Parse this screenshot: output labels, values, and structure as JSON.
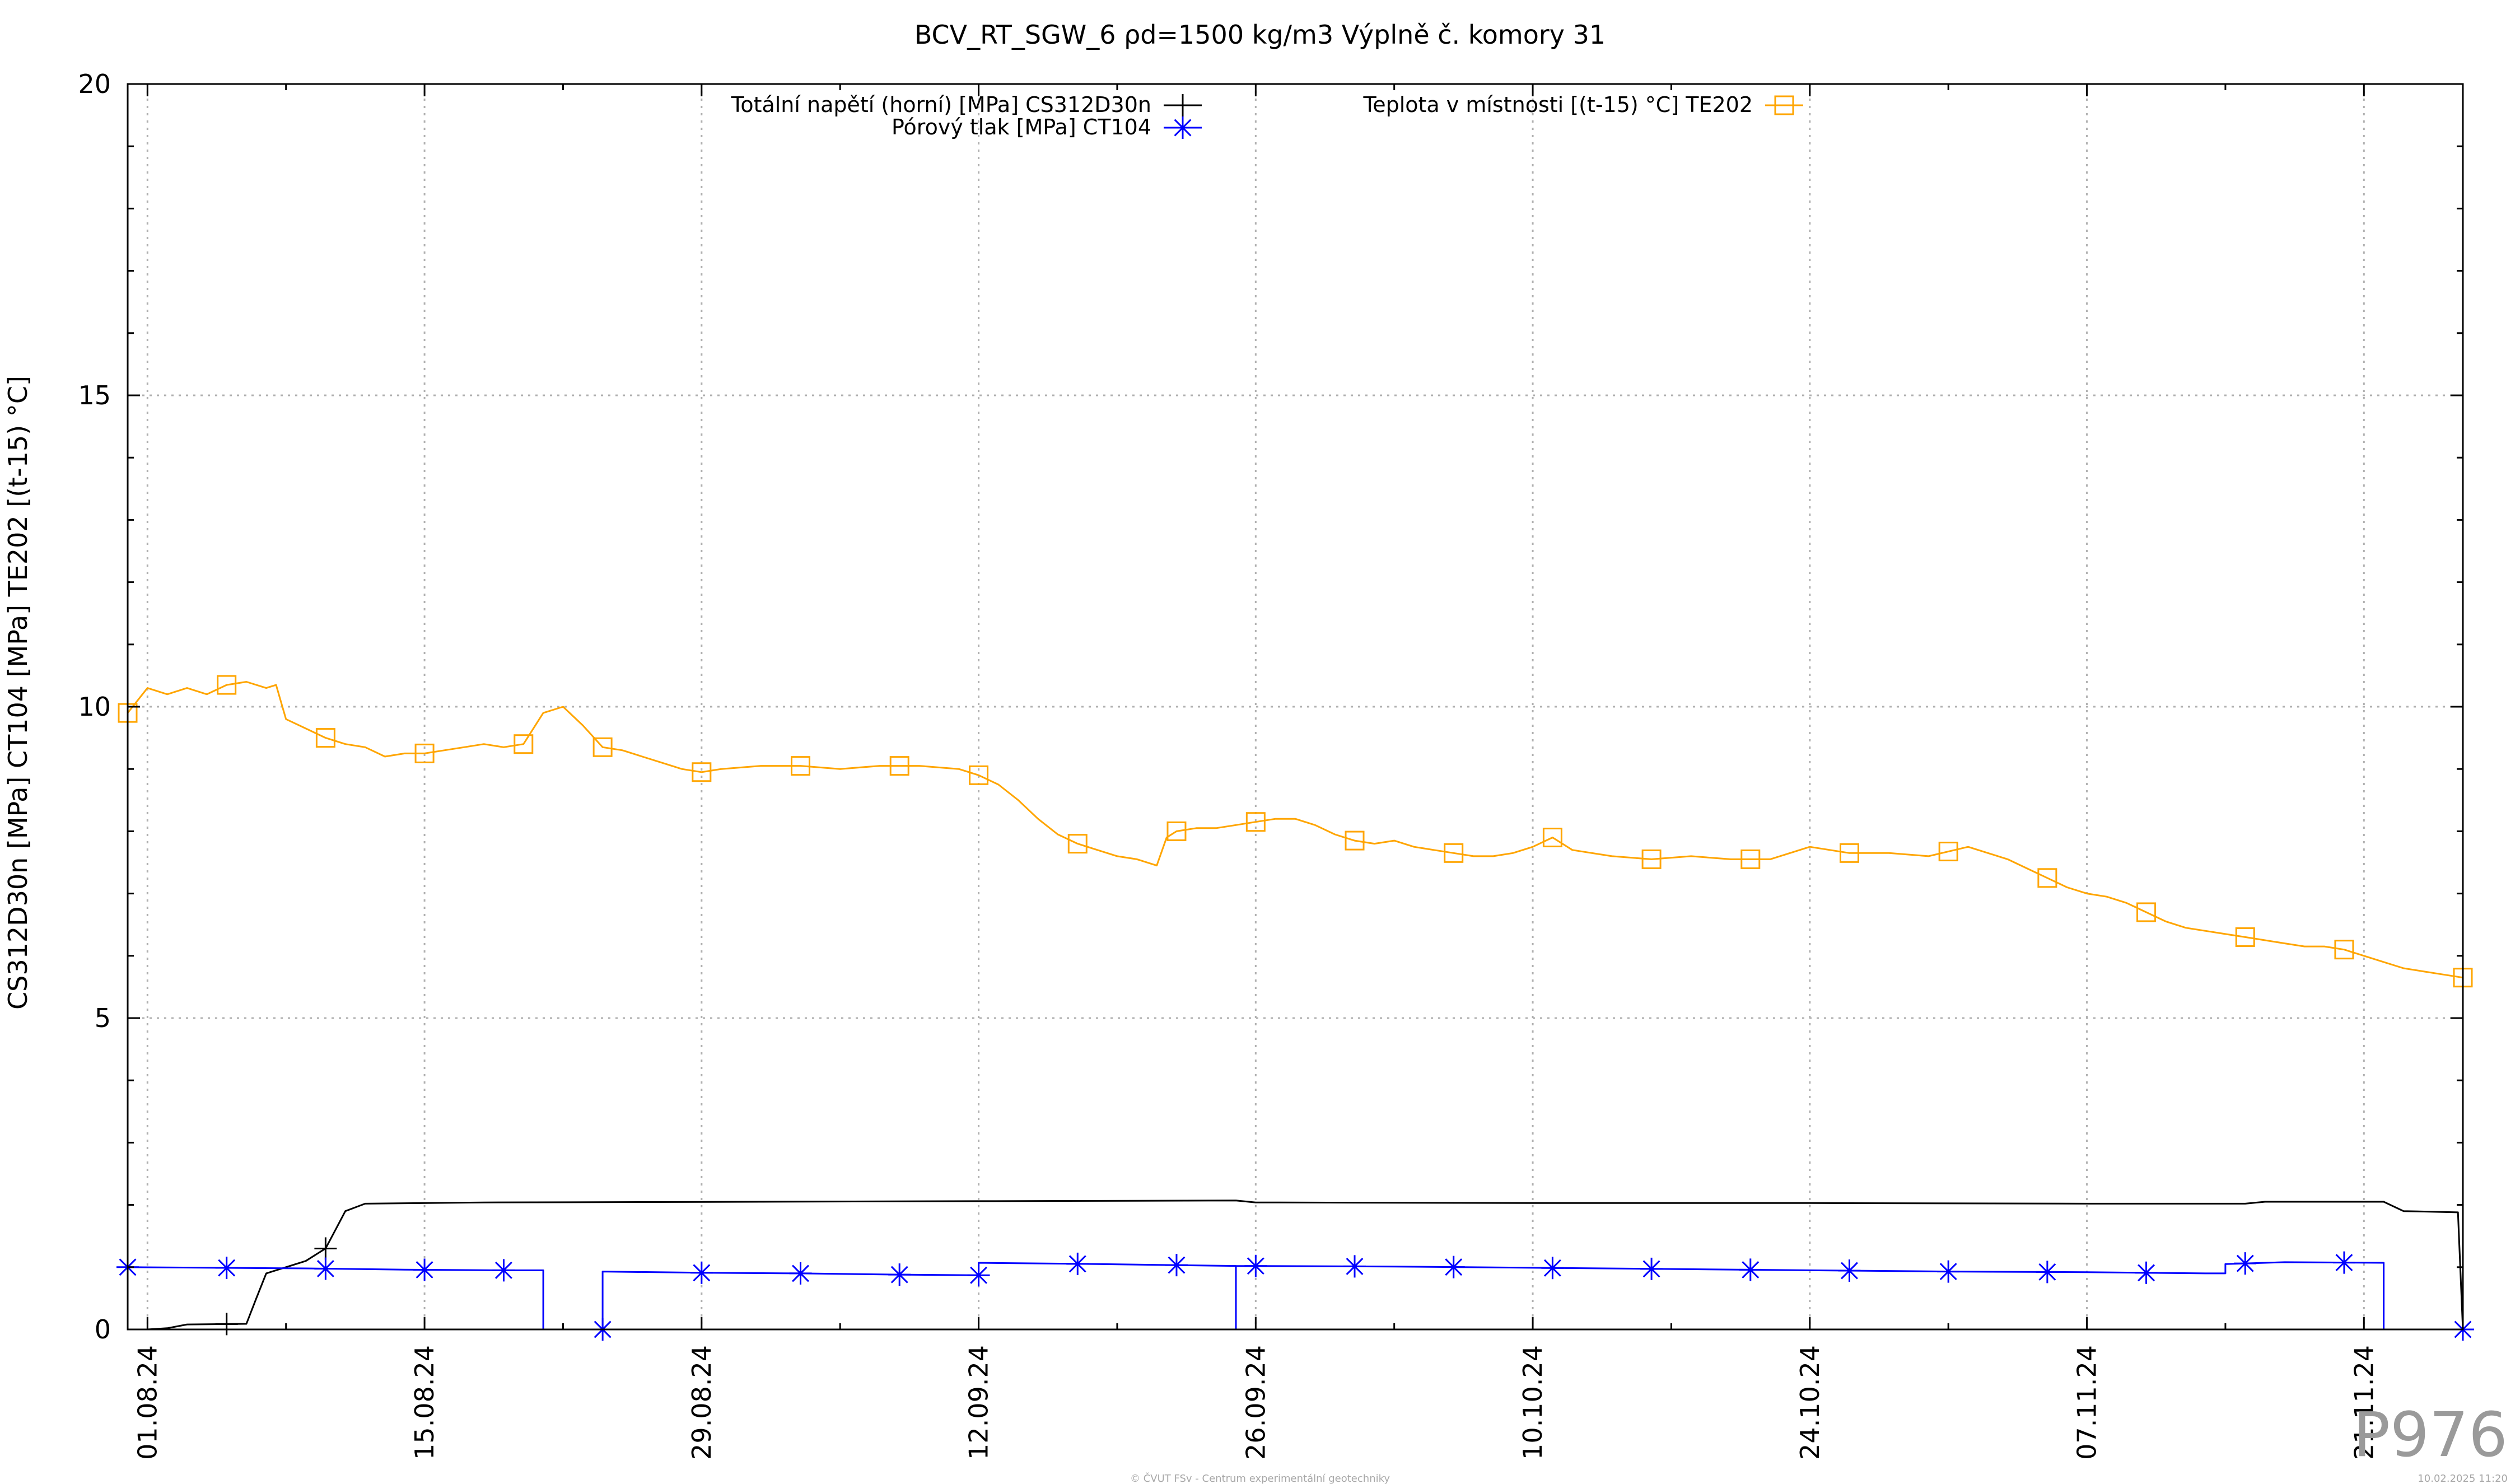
{
  "chart_data": {
    "type": "line",
    "title": "BCV_RT_SGW_6 ρd=1500 kg/m3 Výplně č. komory 31",
    "xlabel": "",
    "ylabel": "CS312D30n [MPa] CT104 [MPa] TE202 [(t-15) °C]",
    "xlim": [
      "2024-07-31",
      "2024-11-26"
    ],
    "ylim": [
      0,
      20
    ],
    "yticks": [
      0,
      5,
      10,
      15,
      20
    ],
    "xticks": [
      "01.08.24",
      "15.08.24",
      "29.08.24",
      "12.09.24",
      "26.09.24",
      "10.10.24",
      "24.10.24",
      "07.11.24",
      "21.11.24"
    ],
    "grid": true,
    "legend_position": "top",
    "watermark": "P976",
    "footer_center": "© ČVUT FSv - Centrum experimentální geotechniky",
    "footer_right": "10.02.2025 11:20",
    "series": [
      {
        "name": "Totální napětí (horní) [MPa] CS312D30n",
        "color": "#000000",
        "marker": "plus",
        "step": false,
        "points": [
          [
            "2024-07-31",
            0.0
          ],
          [
            "2024-08-01",
            0.0
          ],
          [
            "2024-08-02",
            0.02
          ],
          [
            "2024-08-03",
            0.08
          ],
          [
            "2024-08-06",
            0.09
          ],
          [
            "2024-08-06 12:00",
            0.5
          ],
          [
            "2024-08-07",
            0.9
          ],
          [
            "2024-08-08",
            1.0
          ],
          [
            "2024-08-09",
            1.1
          ],
          [
            "2024-08-10",
            1.3
          ],
          [
            "2024-08-10 12:00",
            1.6
          ],
          [
            "2024-08-11",
            1.9
          ],
          [
            "2024-08-12",
            2.02
          ],
          [
            "2024-08-18",
            2.04
          ],
          [
            "2024-09-01",
            2.05
          ],
          [
            "2024-09-12",
            2.06
          ],
          [
            "2024-09-25",
            2.07
          ],
          [
            "2024-09-26",
            2.04
          ],
          [
            "2024-10-10",
            2.03
          ],
          [
            "2024-10-24",
            2.03
          ],
          [
            "2024-11-07",
            2.02
          ],
          [
            "2024-11-15",
            2.02
          ],
          [
            "2024-11-16",
            2.05
          ],
          [
            "2024-11-22",
            2.05
          ],
          [
            "2024-11-23",
            1.9
          ],
          [
            "2024-11-25 18:00",
            1.88
          ],
          [
            "2024-11-26",
            0.0
          ]
        ],
        "markers": [
          "2024-08-05",
          "2024-08-10",
          "2024-11-26"
        ]
      },
      {
        "name": "Pórový tlak [MPa] CT104",
        "color": "#0000ff",
        "marker": "star",
        "step": true,
        "points": [
          [
            "2024-07-31",
            1.0
          ],
          [
            "2024-08-09",
            0.98
          ],
          [
            "2024-08-14",
            0.96
          ],
          [
            "2024-08-19",
            0.95
          ],
          [
            "2024-08-21",
            0.95
          ],
          [
            "2024-08-21",
            0.0
          ],
          [
            "2024-08-24",
            0.0
          ],
          [
            "2024-08-24",
            0.93
          ],
          [
            "2024-08-29",
            0.91
          ],
          [
            "2024-09-03",
            0.9
          ],
          [
            "2024-09-08",
            0.88
          ],
          [
            "2024-09-12",
            0.87
          ],
          [
            "2024-09-12",
            1.07
          ],
          [
            "2024-09-18",
            1.05
          ],
          [
            "2024-09-25",
            1.02
          ],
          [
            "2024-09-25",
            0.0
          ],
          [
            "2024-09-25",
            1.02
          ],
          [
            "2024-10-03",
            1.01
          ],
          [
            "2024-10-10",
            0.99
          ],
          [
            "2024-10-17",
            0.97
          ],
          [
            "2024-10-24",
            0.95
          ],
          [
            "2024-10-31",
            0.93
          ],
          [
            "2024-11-07",
            0.92
          ],
          [
            "2024-11-13",
            0.9
          ],
          [
            "2024-11-14",
            0.9
          ],
          [
            "2024-11-14",
            1.05
          ],
          [
            "2024-11-17",
            1.08
          ],
          [
            "2024-11-22",
            1.07
          ],
          [
            "2024-11-22",
            0.0
          ],
          [
            "2024-11-26",
            0.0
          ]
        ],
        "markers": [
          "2024-07-31",
          "2024-08-05",
          "2024-08-10",
          "2024-08-15",
          "2024-08-19",
          "2024-08-24",
          "2024-08-29",
          "2024-09-03",
          "2024-09-08",
          "2024-09-12",
          "2024-09-17",
          "2024-09-22",
          "2024-09-26",
          "2024-10-01",
          "2024-10-06",
          "2024-10-11",
          "2024-10-16",
          "2024-10-21",
          "2024-10-26",
          "2024-10-31",
          "2024-11-05",
          "2024-11-10",
          "2024-11-15",
          "2024-11-20",
          "2024-11-26"
        ]
      },
      {
        "name": "Teplota v místnosti [(t-15) °C] TE202",
        "color": "#ffa500",
        "marker": "square",
        "step": false,
        "points": [
          [
            "2024-07-31",
            9.9
          ],
          [
            "2024-08-01",
            10.3
          ],
          [
            "2024-08-02",
            10.2
          ],
          [
            "2024-08-03",
            10.3
          ],
          [
            "2024-08-04",
            10.2
          ],
          [
            "2024-08-05",
            10.35
          ],
          [
            "2024-08-06",
            10.4
          ],
          [
            "2024-08-07",
            10.3
          ],
          [
            "2024-08-07 12:00",
            10.35
          ],
          [
            "2024-08-08",
            9.8
          ],
          [
            "2024-08-09",
            9.65
          ],
          [
            "2024-08-10",
            9.5
          ],
          [
            "2024-08-11",
            9.4
          ],
          [
            "2024-08-12",
            9.35
          ],
          [
            "2024-08-13",
            9.2
          ],
          [
            "2024-08-14",
            9.25
          ],
          [
            "2024-08-15",
            9.25
          ],
          [
            "2024-08-16",
            9.3
          ],
          [
            "2024-08-17",
            9.35
          ],
          [
            "2024-08-18",
            9.4
          ],
          [
            "2024-08-19",
            9.35
          ],
          [
            "2024-08-20",
            9.4
          ],
          [
            "2024-08-21",
            9.9
          ],
          [
            "2024-08-22",
            10.0
          ],
          [
            "2024-08-23",
            9.7
          ],
          [
            "2024-08-24",
            9.35
          ],
          [
            "2024-08-25",
            9.3
          ],
          [
            "2024-08-26",
            9.2
          ],
          [
            "2024-08-27",
            9.1
          ],
          [
            "2024-08-28",
            9.0
          ],
          [
            "2024-08-29",
            8.95
          ],
          [
            "2024-08-30",
            9.0
          ],
          [
            "2024-09-01",
            9.05
          ],
          [
            "2024-09-03",
            9.05
          ],
          [
            "2024-09-05",
            9.0
          ],
          [
            "2024-09-07",
            9.05
          ],
          [
            "2024-09-09",
            9.05
          ],
          [
            "2024-09-11",
            9.0
          ],
          [
            "2024-09-12",
            8.9
          ],
          [
            "2024-09-13",
            8.75
          ],
          [
            "2024-09-14",
            8.5
          ],
          [
            "2024-09-15",
            8.2
          ],
          [
            "2024-09-16",
            7.95
          ],
          [
            "2024-09-17",
            7.8
          ],
          [
            "2024-09-18",
            7.7
          ],
          [
            "2024-09-19",
            7.6
          ],
          [
            "2024-09-20",
            7.55
          ],
          [
            "2024-09-21",
            7.45
          ],
          [
            "2024-09-21 12:00",
            7.9
          ],
          [
            "2024-09-22",
            8.0
          ],
          [
            "2024-09-23",
            8.05
          ],
          [
            "2024-09-24",
            8.05
          ],
          [
            "2024-09-25",
            8.1
          ],
          [
            "2024-09-26",
            8.15
          ],
          [
            "2024-09-27",
            8.2
          ],
          [
            "2024-09-28",
            8.2
          ],
          [
            "2024-09-29",
            8.1
          ],
          [
            "2024-09-30",
            7.95
          ],
          [
            "2024-10-01",
            7.85
          ],
          [
            "2024-10-02",
            7.8
          ],
          [
            "2024-10-03",
            7.85
          ],
          [
            "2024-10-04",
            7.75
          ],
          [
            "2024-10-05",
            7.7
          ],
          [
            "2024-10-06",
            7.65
          ],
          [
            "2024-10-07",
            7.6
          ],
          [
            "2024-10-08",
            7.6
          ],
          [
            "2024-10-09",
            7.65
          ],
          [
            "2024-10-10",
            7.75
          ],
          [
            "2024-10-11",
            7.9
          ],
          [
            "2024-10-12",
            7.7
          ],
          [
            "2024-10-14",
            7.6
          ],
          [
            "2024-10-16",
            7.55
          ],
          [
            "2024-10-18",
            7.6
          ],
          [
            "2024-10-20",
            7.55
          ],
          [
            "2024-10-22",
            7.55
          ],
          [
            "2024-10-24",
            7.75
          ],
          [
            "2024-10-26",
            7.65
          ],
          [
            "2024-10-28",
            7.65
          ],
          [
            "2024-10-30",
            7.6
          ],
          [
            "2024-11-01",
            7.75
          ],
          [
            "2024-11-02",
            7.65
          ],
          [
            "2024-11-03",
            7.55
          ],
          [
            "2024-11-04",
            7.4
          ],
          [
            "2024-11-05",
            7.25
          ],
          [
            "2024-11-06",
            7.1
          ],
          [
            "2024-11-07",
            7.0
          ],
          [
            "2024-11-08",
            6.95
          ],
          [
            "2024-11-09",
            6.85
          ],
          [
            "2024-11-10",
            6.7
          ],
          [
            "2024-11-11",
            6.55
          ],
          [
            "2024-11-12",
            6.45
          ],
          [
            "2024-11-13",
            6.4
          ],
          [
            "2024-11-14",
            6.35
          ],
          [
            "2024-11-15",
            6.3
          ],
          [
            "2024-11-16",
            6.25
          ],
          [
            "2024-11-17",
            6.2
          ],
          [
            "2024-11-18",
            6.15
          ],
          [
            "2024-11-19",
            6.15
          ],
          [
            "2024-11-20",
            6.1
          ],
          [
            "2024-11-21",
            6.0
          ],
          [
            "2024-11-22",
            5.9
          ],
          [
            "2024-11-23",
            5.8
          ],
          [
            "2024-11-24",
            5.75
          ],
          [
            "2024-11-25",
            5.7
          ],
          [
            "2024-11-26",
            5.65
          ]
        ],
        "markers": [
          "2024-07-31",
          "2024-08-05",
          "2024-08-10",
          "2024-08-15",
          "2024-08-20",
          "2024-08-24",
          "2024-08-29",
          "2024-09-03",
          "2024-09-08",
          "2024-09-12",
          "2024-09-17",
          "2024-09-22",
          "2024-09-26",
          "2024-10-01",
          "2024-10-06",
          "2024-10-11",
          "2024-10-16",
          "2024-10-21",
          "2024-10-26",
          "2024-10-31",
          "2024-11-05",
          "2024-11-10",
          "2024-11-15",
          "2024-11-20",
          "2024-11-26"
        ]
      }
    ]
  }
}
